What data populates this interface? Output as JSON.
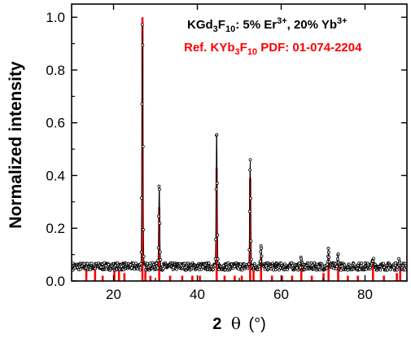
{
  "chart_data": {
    "type": "line",
    "xlabel": {
      "main": "2",
      "symbol": "θ",
      "unit": "(°)"
    },
    "ylabel": "Normalized intensity",
    "xlim": [
      10,
      90
    ],
    "ylim": [
      0,
      1.05
    ],
    "xticks": [
      20,
      40,
      60,
      80
    ],
    "yticks": [
      0.0,
      0.2,
      0.4,
      0.6,
      0.8,
      1.0
    ],
    "grid": false,
    "legend": "top-right",
    "legend_entries": [
      {
        "series": "sample",
        "color": "#000000",
        "parts": [
          "KGd",
          "3",
          "F",
          "10",
          ": 5% Er",
          "3+",
          ", 20% Yb",
          "3+"
        ]
      },
      {
        "series": "reference",
        "color": "#ff0000",
        "parts": [
          "Ref. KYb",
          "3",
          "F",
          "10",
          " PDF: 01-074-2204"
        ]
      }
    ],
    "series": [
      {
        "id": "sample",
        "color": "#000000",
        "style": "line-with-markers",
        "baseline": 0.055,
        "peaks": [
          {
            "x": 26.9,
            "y": 1.0
          },
          {
            "x": 30.9,
            "y": 0.375
          },
          {
            "x": 44.6,
            "y": 0.575
          },
          {
            "x": 52.6,
            "y": 0.46
          },
          {
            "x": 55.2,
            "y": 0.145
          },
          {
            "x": 64.8,
            "y": 0.085
          },
          {
            "x": 71.3,
            "y": 0.12
          },
          {
            "x": 73.6,
            "y": 0.1
          },
          {
            "x": 81.9,
            "y": 0.09
          },
          {
            "x": 88.1,
            "y": 0.075
          }
        ]
      },
      {
        "id": "reference",
        "color": "#ff0000",
        "style": "stick",
        "sticks": [
          {
            "x": 13.5,
            "y": 0.07
          },
          {
            "x": 15.6,
            "y": 0.07
          },
          {
            "x": 17.4,
            "y": 0.02
          },
          {
            "x": 20.2,
            "y": 0.07
          },
          {
            "x": 21.3,
            "y": 0.07
          },
          {
            "x": 22.6,
            "y": 0.03
          },
          {
            "x": 26.9,
            "y": 1.0
          },
          {
            "x": 27.6,
            "y": 0.05
          },
          {
            "x": 28.8,
            "y": 0.02
          },
          {
            "x": 30.9,
            "y": 0.28
          },
          {
            "x": 33.5,
            "y": 0.02
          },
          {
            "x": 36.4,
            "y": 0.02
          },
          {
            "x": 38.8,
            "y": 0.02
          },
          {
            "x": 40.6,
            "y": 0.02
          },
          {
            "x": 44.6,
            "y": 0.43
          },
          {
            "x": 46.5,
            "y": 0.02
          },
          {
            "x": 48.9,
            "y": 0.02
          },
          {
            "x": 50.6,
            "y": 0.02
          },
          {
            "x": 52.6,
            "y": 0.39
          },
          {
            "x": 53.4,
            "y": 0.05
          },
          {
            "x": 55.2,
            "y": 0.1
          },
          {
            "x": 57.8,
            "y": 0.02
          },
          {
            "x": 60.2,
            "y": 0.02
          },
          {
            "x": 62.6,
            "y": 0.02
          },
          {
            "x": 64.8,
            "y": 0.06
          },
          {
            "x": 67.3,
            "y": 0.02
          },
          {
            "x": 70.1,
            "y": 0.03
          },
          {
            "x": 71.3,
            "y": 0.1
          },
          {
            "x": 73.6,
            "y": 0.07
          },
          {
            "x": 75.9,
            "y": 0.02
          },
          {
            "x": 78.3,
            "y": 0.02
          },
          {
            "x": 81.9,
            "y": 0.06
          },
          {
            "x": 84.5,
            "y": 0.02
          },
          {
            "x": 87.6,
            "y": 0.03
          },
          {
            "x": 88.4,
            "y": 0.05
          }
        ]
      }
    ]
  }
}
